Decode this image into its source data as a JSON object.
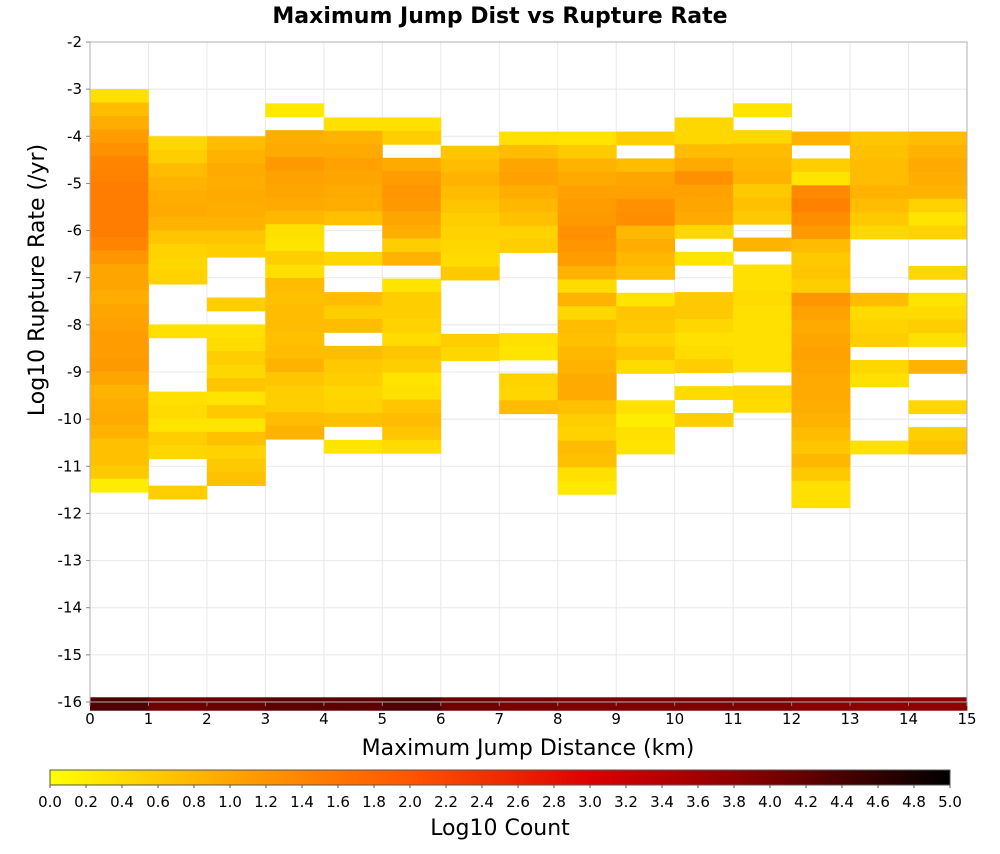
{
  "chart_data": {
    "type": "heatmap",
    "title": "Maximum Jump Dist vs Rupture Rate",
    "xlabel": "Maximum Jump Distance (km)",
    "ylabel": "Log10 Rupture Rate (/yr)",
    "xlim": [
      0,
      15
    ],
    "ylim": [
      -16,
      -2
    ],
    "xticks": [
      "0",
      "1",
      "2",
      "3",
      "4",
      "5",
      "6",
      "7",
      "8",
      "9",
      "10",
      "11",
      "12",
      "13",
      "14",
      "15"
    ],
    "yticks": [
      "-16",
      "-15",
      "-14",
      "-13",
      "-12",
      "-11",
      "-10",
      "-9",
      "-8",
      "-7",
      "-6",
      "-5",
      "-4",
      "-3",
      "-2"
    ],
    "bin_width_x": 1,
    "bin_height_y": 0.285,
    "grid": true,
    "colorbar": {
      "label": "Log10 Count",
      "min": 0.0,
      "max": 5.0,
      "ticks": [
        "0.0",
        "0.2",
        "0.4",
        "0.6",
        "0.8",
        "1.0",
        "1.2",
        "1.4",
        "1.6",
        "1.8",
        "2.0",
        "2.2",
        "2.4",
        "2.6",
        "2.8",
        "3.0",
        "3.2",
        "3.4",
        "3.6",
        "3.8",
        "4.0",
        "4.2",
        "4.4",
        "4.6",
        "4.8",
        "5.0"
      ],
      "colors": [
        "#ffff00",
        "#ffa500",
        "#ff5500",
        "#dd0000",
        "#7a0000",
        "#000000"
      ]
    },
    "bottom_row_y": -15.9,
    "bottom_row_values": [
      4.35,
      4.1,
      4.15,
      4.25,
      4.25,
      4.35,
      4.1,
      4.0,
      3.95,
      3.95,
      3.95,
      3.95,
      3.85,
      3.8,
      3.8
    ],
    "columns": [
      {
        "x": 0,
        "y_start": -3.0,
        "values": [
          0.35,
          0.75,
          0.9,
          1.1,
          1.25,
          1.4,
          1.45,
          1.5,
          1.5,
          1.5,
          1.5,
          1.4,
          1.2,
          1.0,
          1.0,
          0.9,
          1.0,
          1.05,
          1.1,
          1.1,
          1.15,
          1.0,
          0.85,
          0.9,
          0.95,
          0.85,
          0.7,
          0.7,
          0.6,
          0.2
        ]
      },
      {
        "x": 1,
        "y_start": -4.0,
        "values": [
          0.45,
          0.55,
          0.75,
          0.85,
          0.9,
          0.95,
          0.85,
          0.65,
          0.5,
          0.45,
          0.5,
          null,
          null,
          null,
          0.35,
          null,
          null,
          null,
          null,
          0.35,
          0.4,
          0.3,
          0.55,
          0.45,
          null,
          null,
          0.55
        ]
      },
      {
        "x": 2,
        "y_start": -4.0,
        "values": [
          0.75,
          0.85,
          0.95,
          0.9,
          0.95,
          0.9,
          0.85,
          0.65,
          0.55,
          null,
          null,
          null,
          0.55,
          null,
          0.35,
          0.4,
          0.55,
          0.45,
          0.65,
          0.3,
          0.6,
          0.3,
          0.7,
          0.5,
          0.6,
          0.7
        ]
      },
      {
        "x": 3,
        "y_start": -3.3,
        "values": [
          0.25,
          null,
          0.9,
          0.95,
          1.15,
          1.05,
          1.0,
          0.95,
          0.8,
          0.35,
          0.3,
          0.55,
          0.35,
          0.75,
          0.7,
          0.75,
          0.75,
          0.7,
          0.75,
          0.85,
          0.65,
          0.55,
          0.55,
          0.75,
          0.85
        ]
      },
      {
        "x": 4,
        "y_start": -3.6,
        "values": [
          0.35,
          0.85,
          0.95,
          1.05,
          1.0,
          0.95,
          0.9,
          0.7,
          null,
          null,
          0.45,
          null,
          null,
          0.75,
          0.55,
          0.75,
          null,
          0.75,
          0.6,
          0.55,
          0.45,
          0.5,
          0.7,
          null,
          0.3
        ]
      },
      {
        "x": 5,
        "y_start": -3.6,
        "values": [
          0.35,
          0.55,
          null,
          0.95,
          1.1,
          1.2,
          1.15,
          1.0,
          0.9,
          0.55,
          0.85,
          null,
          0.3,
          0.55,
          0.55,
          0.5,
          0.4,
          0.65,
          0.55,
          0.3,
          0.35,
          0.65,
          0.75,
          0.65,
          0.4
        ]
      },
      {
        "x": 6,
        "y_start": -4.2,
        "values": [
          0.65,
          0.75,
          0.85,
          0.75,
          0.65,
          0.55,
          0.5,
          0.45,
          0.4,
          0.6,
          null,
          null,
          null,
          null,
          0.55,
          0.45
        ]
      },
      {
        "x": 7,
        "y_start": -3.9,
        "values": [
          0.35,
          0.75,
          1.0,
          1.05,
          0.9,
          0.8,
          0.7,
          0.5,
          0.55,
          null,
          null,
          null,
          null,
          null,
          null,
          0.35,
          0.3,
          null,
          0.5,
          0.45,
          0.75
        ]
      },
      {
        "x": 8,
        "y_start": -3.9,
        "values": [
          0.3,
          0.6,
          0.85,
          0.95,
          1.05,
          1.1,
          1.15,
          1.25,
          1.2,
          1.1,
          0.85,
          0.4,
          0.85,
          0.45,
          0.75,
          0.7,
          0.8,
          0.85,
          0.95,
          0.95,
          0.7,
          0.55,
          0.5,
          0.75,
          0.7,
          0.35,
          0.25
        ]
      },
      {
        "x": 9,
        "y_start": -3.9,
        "values": [
          0.55,
          null,
          0.75,
          1.0,
          1.05,
          1.25,
          1.3,
          0.8,
          0.9,
          0.8,
          0.7,
          null,
          0.3,
          0.65,
          0.6,
          0.5,
          0.65,
          0.4,
          null,
          null,
          0.35,
          0.2,
          0.35,
          0.3
        ]
      },
      {
        "x": 10,
        "y_start": -3.6,
        "values": [
          0.45,
          0.45,
          0.75,
          0.95,
          1.25,
          1.05,
          1.0,
          0.95,
          0.45,
          null,
          0.3,
          null,
          null,
          0.6,
          0.6,
          0.45,
          0.35,
          0.4,
          0.55,
          null,
          0.4,
          null,
          0.55
        ]
      },
      {
        "x": 11,
        "y_start": -3.3,
        "values": [
          0.3,
          null,
          0.45,
          0.75,
          0.8,
          0.85,
          0.6,
          0.7,
          0.6,
          null,
          0.85,
          null,
          0.35,
          0.35,
          0.4,
          0.35,
          0.35,
          0.35,
          0.35,
          0.35,
          null,
          0.45,
          0.4
        ]
      },
      {
        "x": 12,
        "y_start": -3.9,
        "values": [
          0.85,
          null,
          0.55,
          0.3,
          1.35,
          1.45,
          1.3,
          1.15,
          0.75,
          0.6,
          0.65,
          0.55,
          1.2,
          1.05,
          0.95,
          1.0,
          1.05,
          1.0,
          0.95,
          0.95,
          0.9,
          0.85,
          0.75,
          0.65,
          0.8,
          0.6,
          0.35,
          0.35
        ]
      },
      {
        "x": 13,
        "y_start": -3.9,
        "values": [
          0.65,
          0.7,
          0.75,
          0.75,
          0.85,
          0.75,
          0.6,
          0.45,
          null,
          null,
          null,
          null,
          0.75,
          0.4,
          0.5,
          0.55,
          null,
          0.45,
          0.35,
          null,
          null,
          null,
          null,
          0.35
        ]
      },
      {
        "x": 14,
        "y_start": -3.9,
        "values": [
          0.75,
          0.85,
          0.95,
          0.9,
          0.85,
          0.5,
          0.3,
          0.5,
          null,
          null,
          0.45,
          null,
          0.3,
          0.4,
          0.55,
          0.35,
          null,
          0.85,
          null,
          null,
          0.45,
          null,
          0.55,
          0.65
        ]
      }
    ]
  }
}
